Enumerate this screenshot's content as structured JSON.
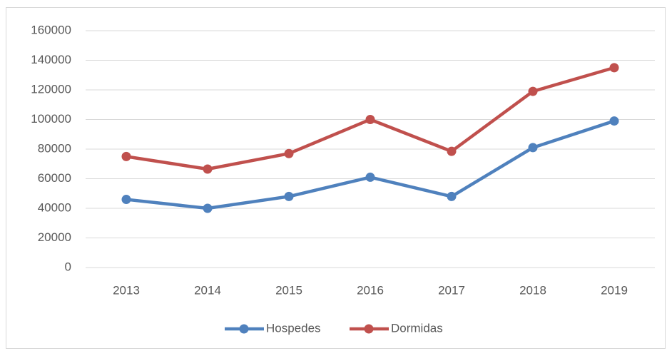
{
  "chart_data": {
    "type": "line",
    "categories": [
      "2013",
      "2014",
      "2015",
      "2016",
      "2017",
      "2018",
      "2019"
    ],
    "series": [
      {
        "name": "Hospedes",
        "color": "#4f81bd",
        "values": [
          46000,
          40000,
          48000,
          61000,
          48000,
          81000,
          99000
        ]
      },
      {
        "name": "Dormidas",
        "color": "#c0504d",
        "values": [
          75000,
          66500,
          77000,
          100000,
          78500,
          119000,
          135000
        ]
      }
    ],
    "ylim": [
      0,
      160000
    ],
    "yticks": [
      0,
      20000,
      40000,
      60000,
      80000,
      100000,
      120000,
      140000,
      160000
    ],
    "grid": true,
    "legend": "bottom"
  }
}
